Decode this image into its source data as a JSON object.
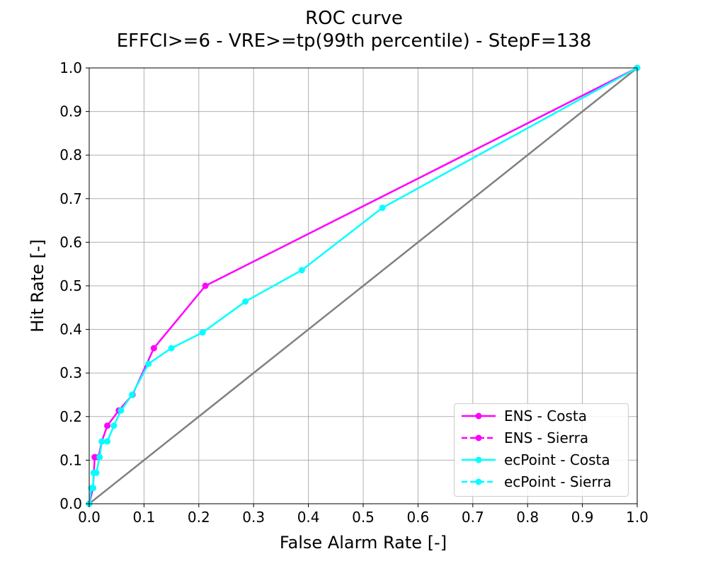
{
  "chart_data": {
    "type": "line",
    "title": "ROC curve",
    "subtitle": "EFFCI>=6 - VRE>=tp(99th percentile) - StepF=138",
    "xlabel": "False Alarm Rate [-]",
    "ylabel": "Hit Rate [-]",
    "xlim": [
      0,
      1
    ],
    "ylim": [
      0,
      1
    ],
    "xticks": [
      "0.0",
      "0.1",
      "0.2",
      "0.3",
      "0.4",
      "0.5",
      "0.6",
      "0.7",
      "0.8",
      "0.9",
      "1.0"
    ],
    "yticks": [
      "0.0",
      "0.1",
      "0.2",
      "0.3",
      "0.4",
      "0.5",
      "0.6",
      "0.7",
      "0.8",
      "0.9",
      "1.0"
    ],
    "grid": true,
    "legend_position": "lower-right",
    "diagonal": {
      "points": [
        [
          0,
          0
        ],
        [
          1,
          1
        ]
      ],
      "color": "#808080"
    },
    "series": [
      {
        "name": "ENS - Costa",
        "color": "#ff00ff",
        "linestyle": "solid",
        "points": [
          [
            1.0,
            1.0
          ],
          [
            0.212,
            0.5
          ],
          [
            0.118,
            0.357
          ],
          [
            0.079,
            0.25
          ],
          [
            0.054,
            0.214
          ],
          [
            0.033,
            0.179
          ],
          [
            0.023,
            0.143
          ],
          [
            0.017,
            0.107
          ],
          [
            0.01,
            0.107
          ],
          [
            0.007,
            0.036
          ],
          [
            0.0,
            0.0
          ]
        ]
      },
      {
        "name": "ENS - Sierra",
        "color": "#ff00ff",
        "linestyle": "dashed",
        "points": []
      },
      {
        "name": "ecPoint - Costa",
        "color": "#00ffff",
        "linestyle": "solid",
        "points": [
          [
            1.0,
            1.0
          ],
          [
            0.535,
            0.679
          ],
          [
            0.388,
            0.536
          ],
          [
            0.285,
            0.464
          ],
          [
            0.207,
            0.393
          ],
          [
            0.15,
            0.357
          ],
          [
            0.108,
            0.321
          ],
          [
            0.078,
            0.25
          ],
          [
            0.058,
            0.214
          ],
          [
            0.045,
            0.179
          ],
          [
            0.033,
            0.143
          ],
          [
            0.023,
            0.143
          ],
          [
            0.019,
            0.107
          ],
          [
            0.013,
            0.071
          ],
          [
            0.008,
            0.071
          ],
          [
            0.007,
            0.036
          ],
          [
            0.004,
            0.036
          ],
          [
            0.0,
            0.0
          ]
        ]
      },
      {
        "name": "ecPoint - Sierra",
        "color": "#00ffff",
        "linestyle": "dashed",
        "points": []
      }
    ]
  }
}
